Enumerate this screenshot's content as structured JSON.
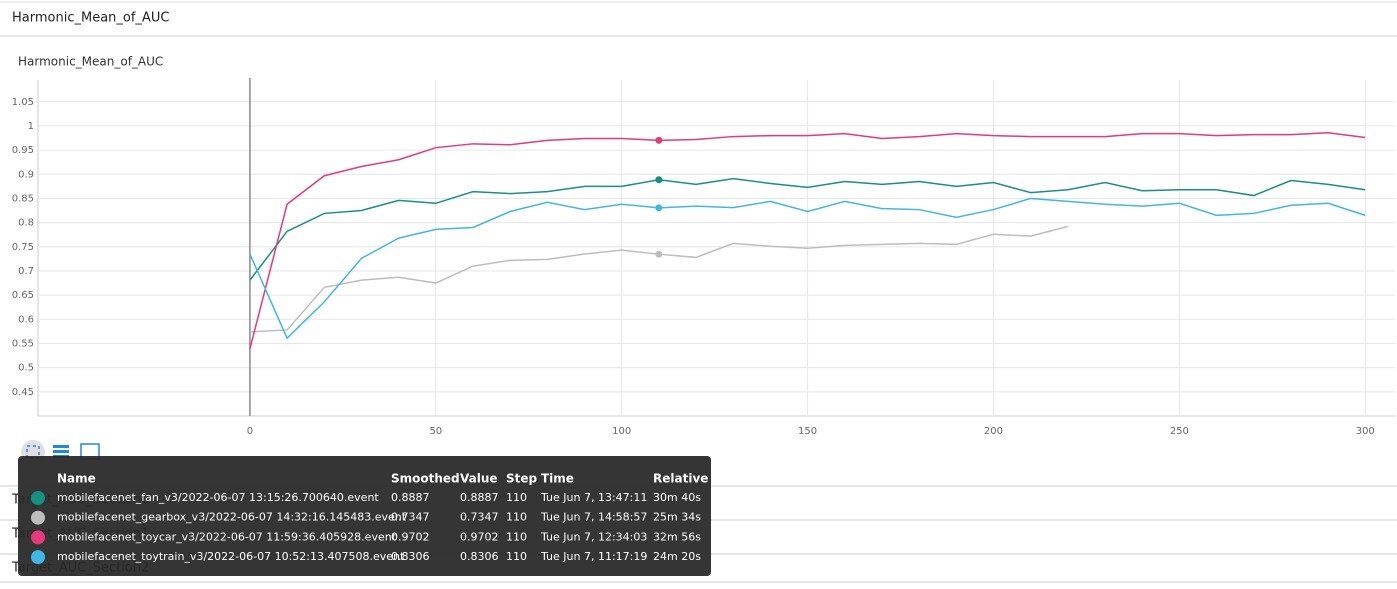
{
  "header": {
    "title": "Harmonic_Mean_of_AUC"
  },
  "chart_data": {
    "type": "line",
    "title": "Harmonic_Mean_of_AUC",
    "x": [
      0,
      10,
      20,
      30,
      40,
      50,
      60,
      70,
      80,
      90,
      100,
      110,
      120,
      130,
      140,
      150,
      160,
      170,
      180,
      190,
      200,
      210,
      220,
      230,
      240,
      250,
      260,
      270,
      280,
      290,
      300
    ],
    "series": [
      {
        "name": "mobilefacenet_fan_v3/2022-06-07 13:15:26.700640.event",
        "color": "#12937f",
        "values": [
          0.681,
          0.782,
          0.819,
          0.825,
          0.846,
          0.84,
          0.864,
          0.86,
          0.864,
          0.875,
          0.875,
          0.8887,
          0.879,
          0.891,
          0.881,
          0.873,
          0.885,
          0.879,
          0.885,
          0.875,
          0.883,
          0.862,
          0.868,
          0.883,
          0.866,
          0.868,
          0.868,
          0.856,
          0.887,
          0.879,
          0.868
        ]
      },
      {
        "name": "mobilefacenet_gearbox_v3/2022-06-07 14:32:16.145483.event",
        "color": "#bdbdbd",
        "values": [
          0.574,
          0.578,
          0.666,
          0.681,
          0.687,
          0.675,
          0.71,
          0.722,
          0.724,
          0.735,
          0.743,
          0.7347,
          0.728,
          0.757,
          0.751,
          0.747,
          0.753,
          0.755,
          0.757,
          0.755,
          0.776,
          0.772,
          0.792,
          null,
          null,
          null,
          null,
          null,
          null,
          null,
          null
        ]
      },
      {
        "name": "mobilefacenet_toycar_v3/2022-06-07 11:59:36.405928.event",
        "color": "#e7387a",
        "values": [
          0.539,
          0.838,
          0.897,
          0.916,
          0.93,
          0.955,
          0.963,
          0.961,
          0.97,
          0.974,
          0.974,
          0.9702,
          0.972,
          0.978,
          0.98,
          0.98,
          0.984,
          0.974,
          0.978,
          0.984,
          0.98,
          0.978,
          0.978,
          0.978,
          0.984,
          0.984,
          0.98,
          0.982,
          0.982,
          0.986,
          0.976
        ]
      },
      {
        "name": "mobilefacenet_toytrain_v3/2022-06-07 10:52:13.407508.event",
        "color": "#3fb7e4",
        "values": [
          0.735,
          0.561,
          0.636,
          0.726,
          0.768,
          0.786,
          0.79,
          0.823,
          0.842,
          0.827,
          0.838,
          0.8306,
          0.834,
          0.831,
          0.844,
          0.823,
          0.844,
          0.829,
          0.827,
          0.811,
          0.827,
          0.85,
          0.844,
          0.838,
          0.834,
          0.84,
          0.815,
          0.819,
          0.836,
          0.84,
          0.815
        ]
      }
    ],
    "highlight_index": 11,
    "xlim": [
      -57,
      308
    ],
    "xticks": [
      0,
      50,
      100,
      150,
      200,
      250,
      300
    ],
    "ylim": [
      0.4,
      1.095
    ],
    "yticks": [
      0.45,
      0.5,
      0.55,
      0.6,
      0.65,
      0.7,
      0.75,
      0.8,
      0.85,
      0.9,
      0.95,
      1,
      1.05
    ],
    "grid": true
  },
  "tooltip": {
    "columns": [
      "Name",
      "Smoothed",
      "Value",
      "Step",
      "Time",
      "Relative"
    ],
    "rows": [
      [
        "mobilefacenet_fan_v3/2022-06-07 13:15:26.700640.event",
        "0.8887",
        "0.8887",
        "110",
        "Tue Jun 7, 13:47:11",
        "30m 40s"
      ],
      [
        "mobilefacenet_gearbox_v3/2022-06-07 14:32:16.145483.event",
        "0.7347",
        "0.7347",
        "110",
        "Tue Jun 7, 14:58:57",
        "25m 34s"
      ],
      [
        "mobilefacenet_toycar_v3/2022-06-07 11:59:36.405928.event",
        "0.9702",
        "0.9702",
        "110",
        "Tue Jun 7, 12:34:03",
        "32m 56s"
      ],
      [
        "mobilefacenet_toytrain_v3/2022-06-07 10:52:13.407508.event",
        "0.8306",
        "0.8306",
        "110",
        "Tue Jun 7, 11:17:19",
        "24m 20s"
      ]
    ]
  },
  "other_panels": [
    "Target_AUC_Section0",
    "Target_AUC_Section1",
    "Target_AUC_Section2"
  ]
}
